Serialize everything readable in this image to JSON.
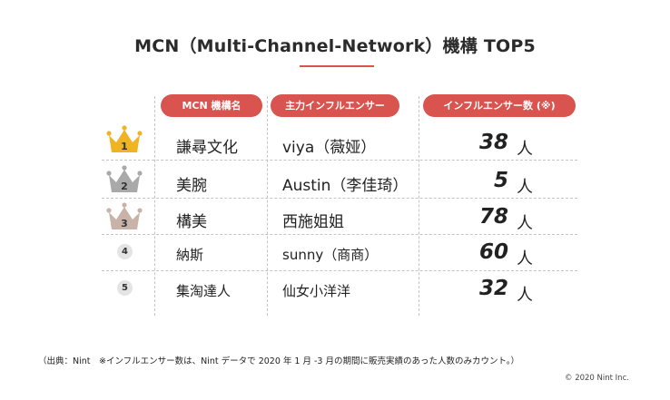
{
  "title": "MCN（Multi-Channel-Network）機構 TOP5",
  "headers": {
    "col1": "MCN 機構名",
    "col2": "主力インフルエンサー",
    "col3": "インフルエンサー数 (※)"
  },
  "unit": "人",
  "rows": [
    {
      "rank": "1",
      "name": "謙尋文化",
      "influencer": "viya（薇娅）",
      "count": "38",
      "crown": "gold",
      "color": "#f0b323"
    },
    {
      "rank": "2",
      "name": "美腕",
      "influencer": "Austin（李佳琦）",
      "count": "5",
      "crown": "silver",
      "color": "#a9a9a9"
    },
    {
      "rank": "3",
      "name": "構美",
      "influencer": "西施姐姐",
      "count": "78",
      "crown": "bronze",
      "color": "#c9b3a8"
    },
    {
      "rank": "4",
      "name": "納斯",
      "influencer": "sunny（商商）",
      "count": "60"
    },
    {
      "rank": "5",
      "name": "集淘達人",
      "influencer": "仙女小洋洋",
      "count": "32"
    }
  ],
  "footnote": "（出典：Nint　※インフルエンサー数は、Nint データで 2020 年 1 月 -3 月の期間に販売実績のあった人数のみカウント。）",
  "copyright": "© 2020 Nint Inc."
}
